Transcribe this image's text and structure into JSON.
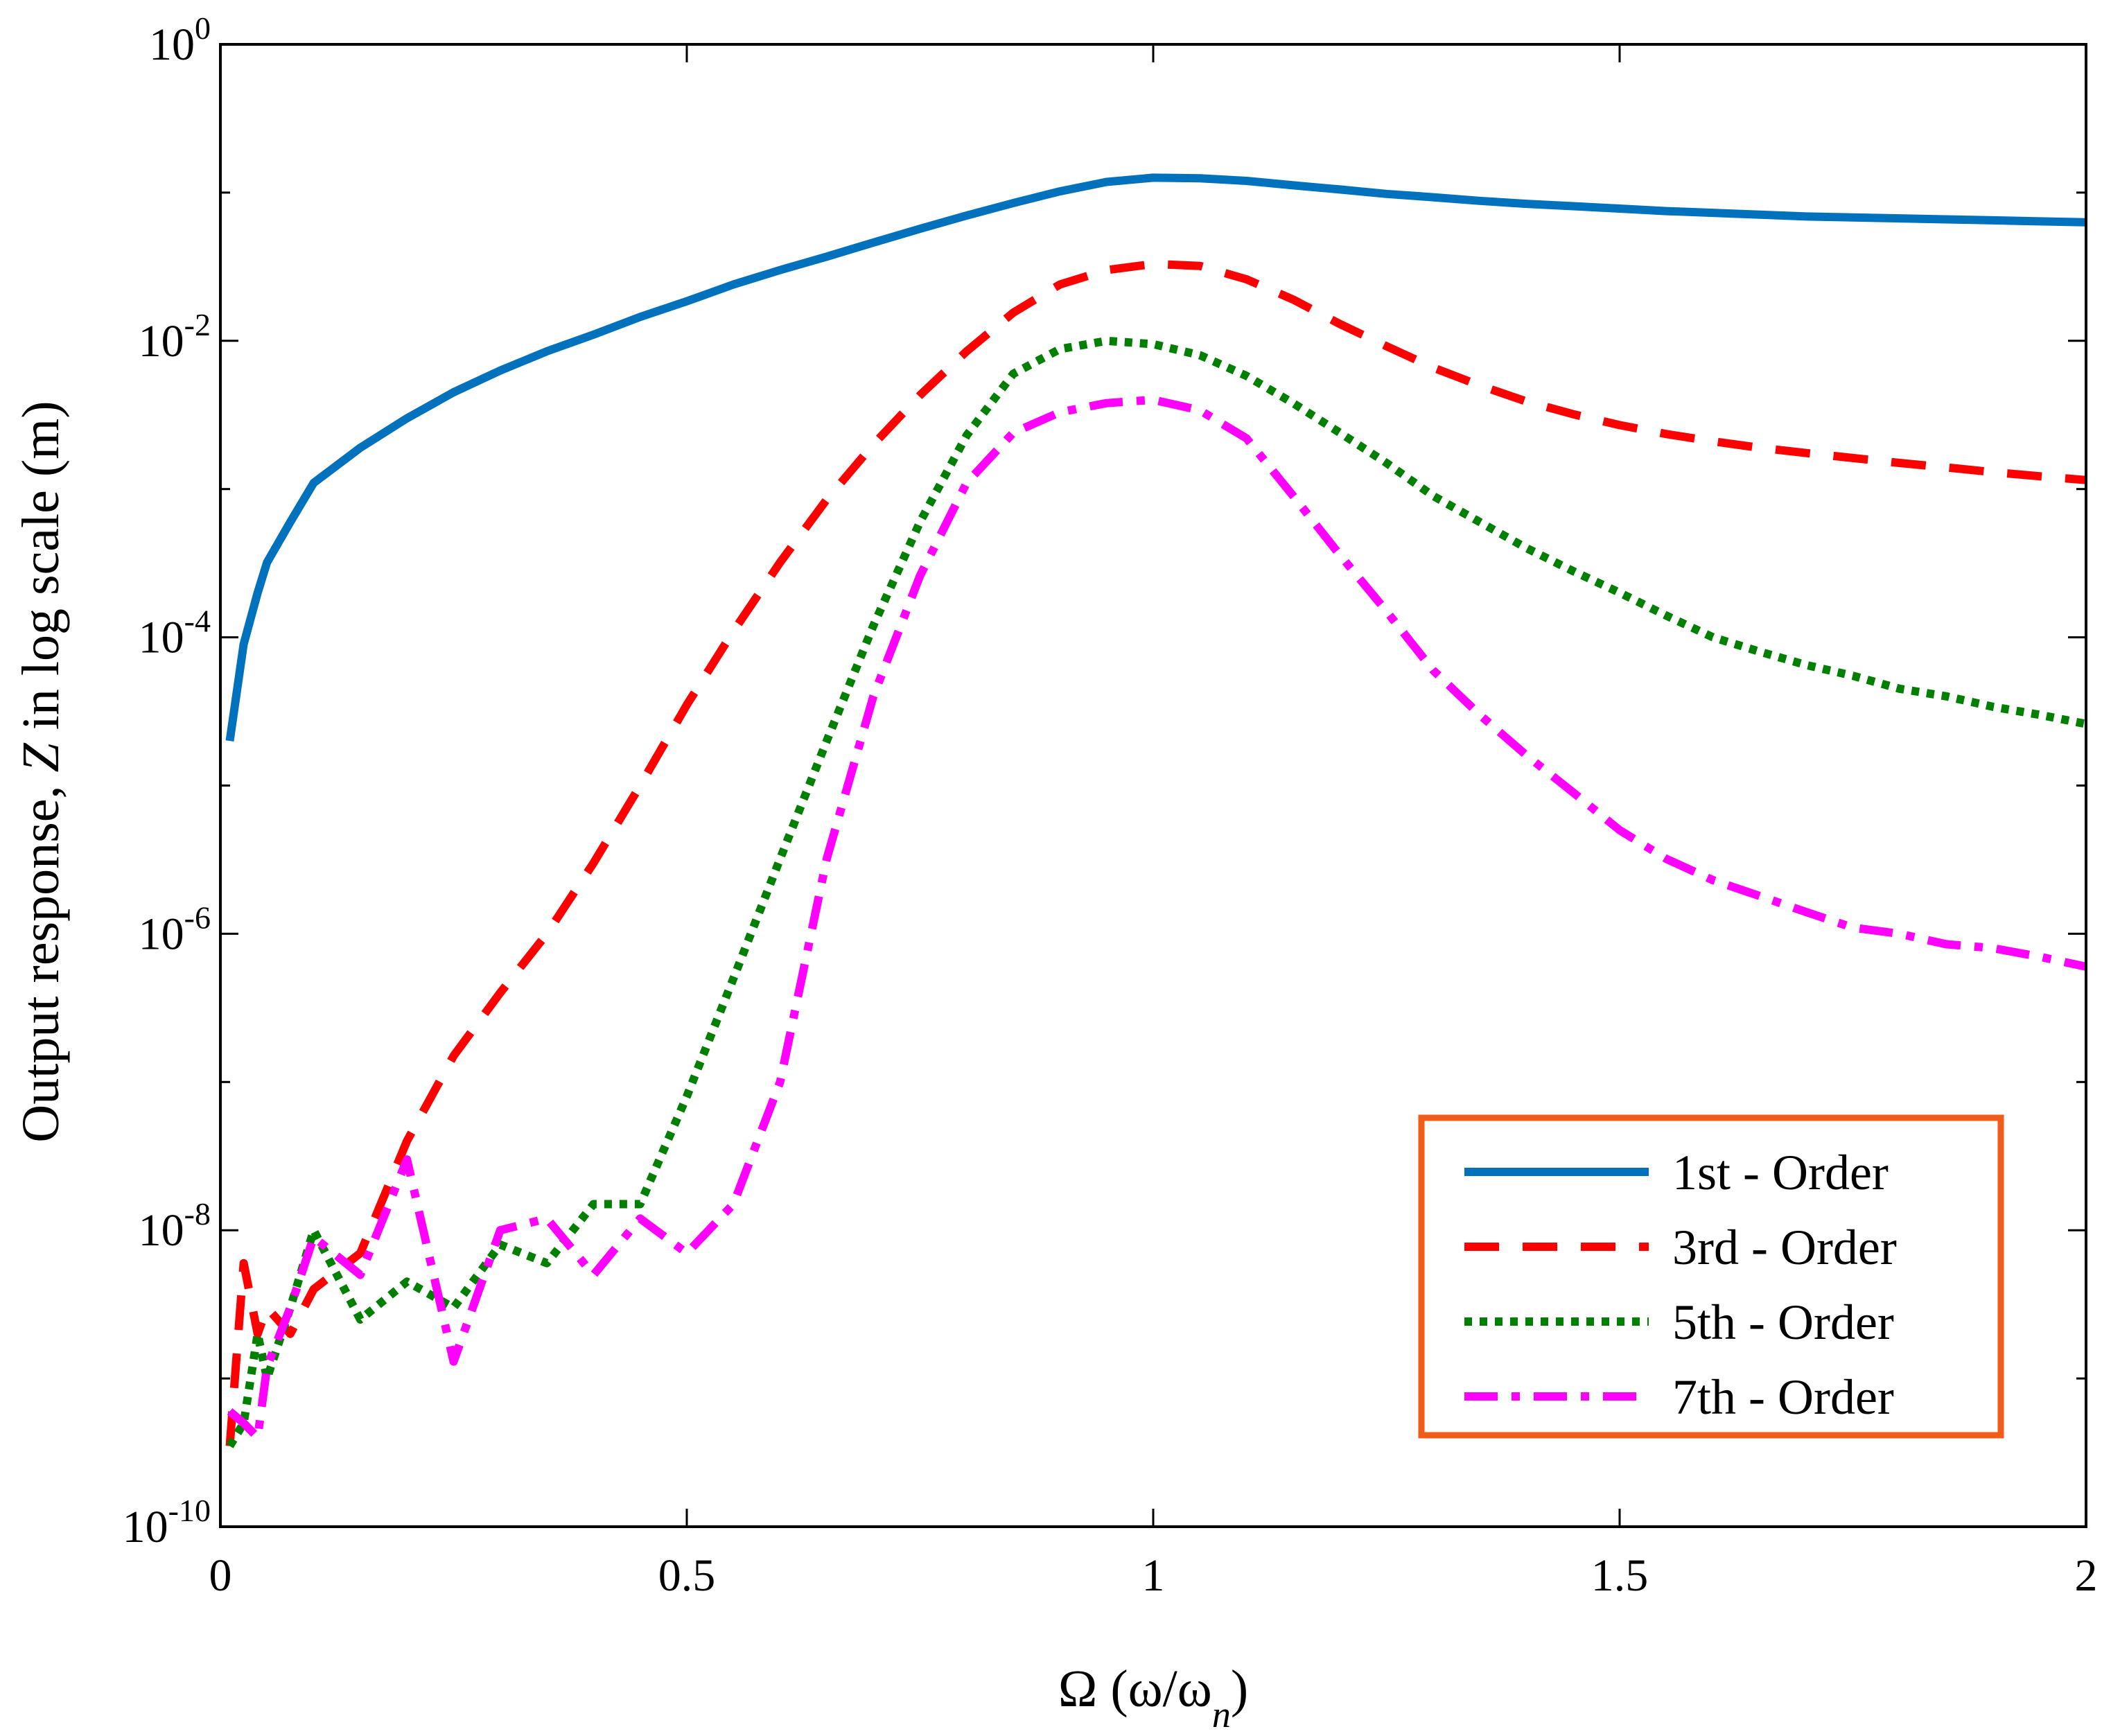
{
  "chart_data": {
    "type": "line",
    "title": "",
    "xlabel": "Ω (ω/ω",
    "xlabel_sub": "n",
    "xlabel_end": ")",
    "ylabel_prefix": "Output response, ",
    "ylabel_var": "Z",
    "ylabel_suffix": " in log scale (m)",
    "xlim": [
      0,
      2
    ],
    "ylim_log10": [
      -10,
      0
    ],
    "y_scale": "log",
    "grid": false,
    "legend_position": "bottom-right",
    "x_ticks": [
      {
        "value": 0,
        "label": "0"
      },
      {
        "value": 0.5,
        "label": "0.5"
      },
      {
        "value": 1,
        "label": "1"
      },
      {
        "value": 1.5,
        "label": "1.5"
      },
      {
        "value": 2,
        "label": "2"
      }
    ],
    "y_ticks": [
      {
        "exp": 0,
        "base": "10",
        "sup": "0"
      },
      {
        "exp": -2,
        "base": "10",
        "sup": "-2"
      },
      {
        "exp": -4,
        "base": "10",
        "sup": "-4"
      },
      {
        "exp": -6,
        "base": "10",
        "sup": "-6"
      },
      {
        "exp": -8,
        "base": "10",
        "sup": "-8"
      },
      {
        "exp": -10,
        "base": "10",
        "sup": "-10"
      }
    ],
    "x": [
      0.01,
      0.025,
      0.04,
      0.05,
      0.075,
      0.1,
      0.15,
      0.2,
      0.25,
      0.3,
      0.35,
      0.4,
      0.45,
      0.5,
      0.55,
      0.6,
      0.65,
      0.7,
      0.75,
      0.8,
      0.85,
      0.9,
      0.95,
      1.0,
      1.05,
      1.1,
      1.15,
      1.2,
      1.25,
      1.3,
      1.35,
      1.4,
      1.45,
      1.5,
      1.55,
      1.6,
      1.65,
      1.7,
      1.75,
      1.8,
      1.85,
      1.9,
      1.95,
      2.0
    ],
    "series": [
      {
        "name": "1st - Order",
        "color": "#0072BD",
        "dash": "solid",
        "values": [
          2e-05,
          9e-05,
          0.0002,
          0.00032,
          0.0006,
          0.0011,
          0.0019,
          0.003,
          0.0045,
          0.0063,
          0.0085,
          0.011,
          0.0145,
          0.0185,
          0.024,
          0.03,
          0.037,
          0.046,
          0.057,
          0.07,
          0.085,
          0.102,
          0.118,
          0.126,
          0.125,
          0.12,
          0.112,
          0.105,
          0.098,
          0.093,
          0.088,
          0.084,
          0.081,
          0.078,
          0.075,
          0.073,
          0.071,
          0.069,
          0.068,
          0.067,
          0.066,
          0.065,
          0.064,
          0.063
        ]
      },
      {
        "name": "3rd - Order",
        "color": "#FF0000",
        "dash": "dashed",
        "values": [
          3.5e-10,
          6e-09,
          2e-09,
          3e-09,
          2e-09,
          4e-09,
          7e-09,
          4e-08,
          1.5e-07,
          4e-07,
          1e-06,
          3e-06,
          1e-05,
          3.5e-05,
          0.00011,
          0.00032,
          0.00085,
          0.002,
          0.0043,
          0.0085,
          0.0155,
          0.024,
          0.03,
          0.033,
          0.032,
          0.026,
          0.019,
          0.013,
          0.0092,
          0.0066,
          0.005,
          0.0039,
          0.0032,
          0.0027,
          0.00235,
          0.0021,
          0.0019,
          0.00175,
          0.00162,
          0.0015,
          0.0014,
          0.0013,
          0.00122,
          0.00115
        ]
      },
      {
        "name": "5th - Order",
        "color": "#007F00",
        "dash": "dotted",
        "values": [
          3.5e-10,
          5e-10,
          2e-09,
          1e-09,
          3e-09,
          1e-08,
          2.5e-09,
          4.5e-09,
          3e-09,
          8e-09,
          6e-09,
          1.5e-08,
          1.5e-08,
          8e-08,
          5e-07,
          3.2e-06,
          2e-05,
          0.00012,
          0.0006,
          0.0023,
          0.006,
          0.0088,
          0.01,
          0.0095,
          0.008,
          0.0058,
          0.0038,
          0.0024,
          0.0015,
          0.0009,
          0.0006,
          0.0004,
          0.00028,
          0.0002,
          0.00014,
          0.0001,
          8e-05,
          6.5e-05,
          5.5e-05,
          4.5e-05,
          4e-05,
          3.4e-05,
          3e-05,
          2.6e-05
        ]
      },
      {
        "name": "7th - Order",
        "color": "#FF00FF",
        "dash": "dashdot",
        "values": [
          6e-10,
          5e-10,
          4e-10,
          1.2e-09,
          3e-09,
          9e-09,
          5e-09,
          3e-08,
          1.3e-09,
          1e-08,
          1.2e-08,
          5e-09,
          1.2e-08,
          7e-09,
          1.5e-08,
          1e-07,
          3.2e-06,
          4e-05,
          0.00026,
          0.0011,
          0.0024,
          0.0033,
          0.0038,
          0.004,
          0.0034,
          0.0022,
          0.0009,
          0.00036,
          0.00015,
          6e-05,
          3e-05,
          1.6e-05,
          9e-06,
          5e-06,
          3.2e-06,
          2.3e-06,
          1.8e-06,
          1.4e-06,
          1.1e-06,
          1e-06,
          8.5e-07,
          8e-07,
          7e-07,
          6e-07
        ]
      }
    ]
  }
}
